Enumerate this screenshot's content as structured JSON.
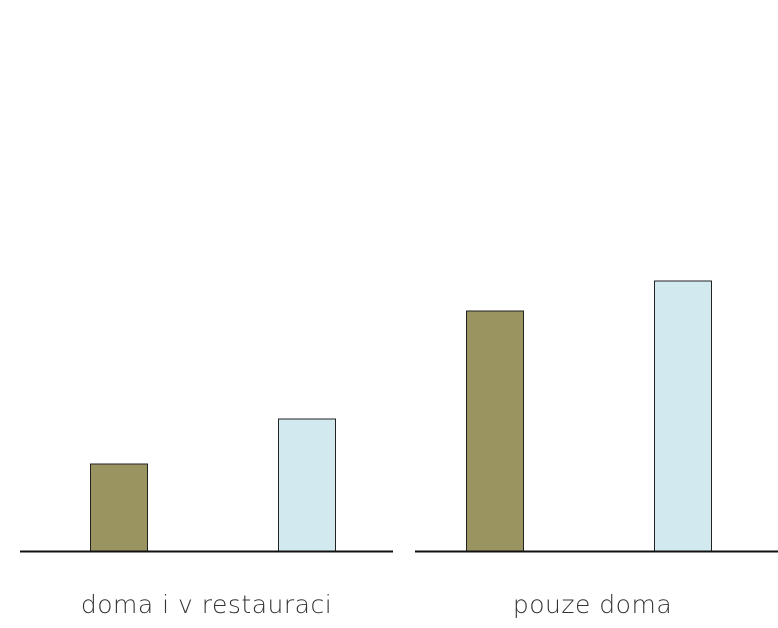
{
  "chart_data": {
    "type": "bar",
    "categories": [
      "doma i v restauraci",
      "pouze doma"
    ],
    "series": [
      {
        "color": "#9a9461",
        "values": [
          87,
          240
        ]
      },
      {
        "color": "#d3e9f0",
        "values": [
          132,
          270
        ]
      }
    ],
    "ylim": [
      0,
      300
    ]
  }
}
